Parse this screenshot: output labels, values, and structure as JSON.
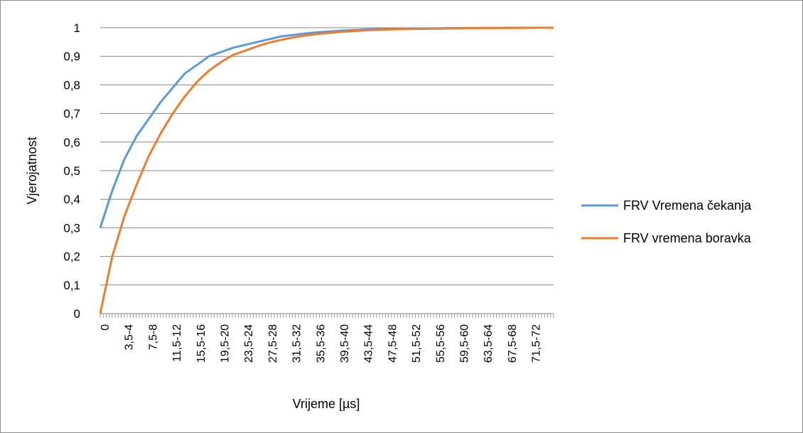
{
  "chart_data": {
    "type": "line",
    "title": "",
    "xlabel": "Vrijeme [µs]",
    "ylabel": "Vjerojatnost",
    "ylim": [
      0,
      1
    ],
    "y_ticks": [
      "0",
      "0,1",
      "0,2",
      "0,3",
      "0,4",
      "0,5",
      "0,6",
      "0,7",
      "0,8",
      "0,9",
      "1"
    ],
    "x_tick_labels": [
      "0",
      "3,5-4",
      "7,5-8",
      "11,5-12",
      "15,5-16",
      "19,5-20",
      "23,5-24",
      "27,5-28",
      "31,5-32",
      "35,5-36",
      "39,5-40",
      "43,5-44",
      "47,5-48",
      "51,5-52",
      "55,5-56",
      "59,5-60",
      "63,5-64",
      "67,5-68",
      "71,5-72"
    ],
    "x": [
      0,
      2,
      4,
      6,
      8,
      10,
      12,
      14,
      16,
      18,
      20,
      22,
      24,
      26,
      28,
      30,
      32,
      34,
      36,
      38,
      40,
      44,
      48,
      52,
      56,
      60,
      64,
      68,
      72,
      75
    ],
    "grid": true,
    "legend_position": "right",
    "series": [
      {
        "name": "FRV Vremena čekanja",
        "color": "#5b9bd5",
        "values": [
          0.3,
          0.43,
          0.54,
          0.62,
          0.68,
          0.74,
          0.79,
          0.84,
          0.87,
          0.9,
          0.915,
          0.93,
          0.94,
          0.95,
          0.96,
          0.97,
          0.975,
          0.98,
          0.984,
          0.987,
          0.99,
          0.994,
          0.996,
          0.997,
          0.998,
          0.999,
          0.999,
          1.0,
          1.0,
          1.0
        ]
      },
      {
        "name": "FRV vremena boravka",
        "color": "#ed7d31",
        "values": [
          0.0,
          0.2,
          0.34,
          0.45,
          0.55,
          0.63,
          0.7,
          0.76,
          0.81,
          0.85,
          0.88,
          0.905,
          0.92,
          0.935,
          0.948,
          0.958,
          0.966,
          0.973,
          0.978,
          0.982,
          0.986,
          0.991,
          0.994,
          0.996,
          0.997,
          0.998,
          0.999,
          0.999,
          1.0,
          1.0
        ]
      }
    ]
  }
}
